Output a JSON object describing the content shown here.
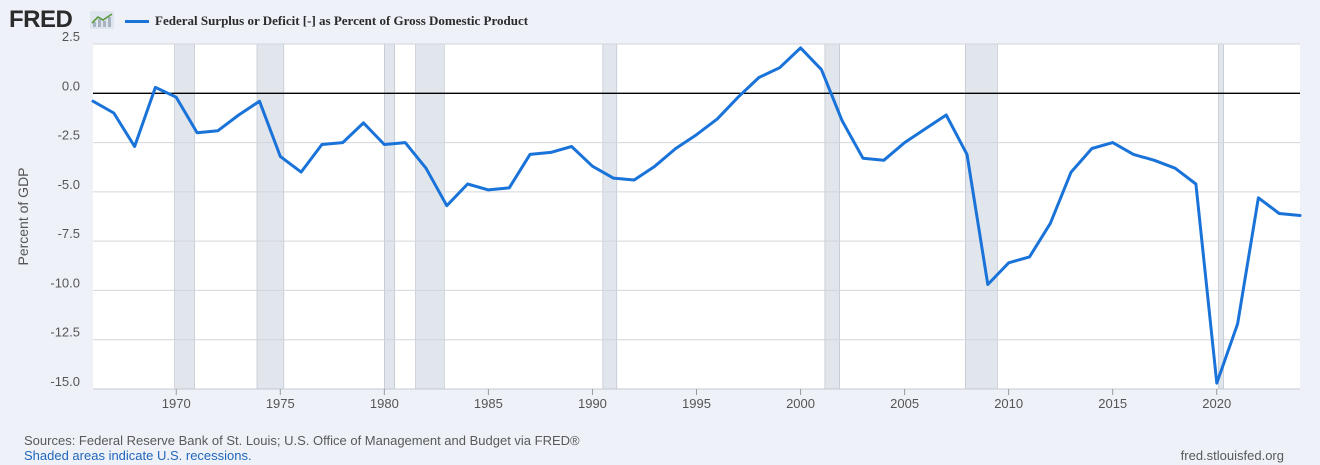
{
  "header": {
    "logo_text": "FRED",
    "logo_icon": "trend-chart-icon",
    "series_label": "Federal Surplus or Deficit [-] as Percent of Gross Domestic Product",
    "series_color": "#1a73d9"
  },
  "footer": {
    "sources": "Sources: Federal Reserve Bank of St. Louis; U.S. Office of Management and Budget via FRED®",
    "recession_note": "Shaded areas indicate U.S. recessions.",
    "site": "fred.stlouisfed.org"
  },
  "colors": {
    "background": "#eef2f8",
    "plot_background": "#ffffff",
    "recession_shading": "#e1e5ec",
    "series": "#1a73d9",
    "zero_line": "#000000"
  },
  "chart_data": {
    "type": "line",
    "title": "",
    "xlabel": "",
    "ylabel": "Percent of GDP",
    "xlim": [
      1966,
      2024
    ],
    "ylim": [
      -15,
      2.5
    ],
    "y_ticks": [
      2.5,
      0.0,
      -2.5,
      -5.0,
      -7.5,
      -10.0,
      -12.5,
      -15.0
    ],
    "y_tick_labels": [
      "2.5",
      "0.0",
      "-2.5",
      "-5.0",
      "-7.5",
      "-10.0",
      "-12.5",
      "-15.0"
    ],
    "x_ticks": [
      1970,
      1975,
      1980,
      1985,
      1990,
      1995,
      2000,
      2005,
      2010,
      2015,
      2020
    ],
    "x_tick_labels": [
      "1970",
      "1975",
      "1980",
      "1985",
      "1990",
      "1995",
      "2000",
      "2005",
      "2010",
      "2015",
      "2020"
    ],
    "grid": "horizontal",
    "reference_line": 0,
    "recessions": [
      [
        1969.92,
        1970.88
      ],
      [
        1973.88,
        1975.17
      ],
      [
        1980.0,
        1980.5
      ],
      [
        1981.5,
        1982.88
      ],
      [
        1990.5,
        1991.17
      ],
      [
        2001.17,
        2001.88
      ],
      [
        2007.92,
        2009.46
      ],
      [
        2020.08,
        2020.33
      ]
    ],
    "series": [
      {
        "name": "Federal Surplus or Deficit [-] as Percent of Gross Domestic Product",
        "x": [
          1966,
          1967,
          1968,
          1969,
          1970,
          1971,
          1972,
          1973,
          1974,
          1975,
          1976,
          1977,
          1978,
          1979,
          1980,
          1981,
          1982,
          1983,
          1984,
          1985,
          1986,
          1987,
          1988,
          1989,
          1990,
          1991,
          1992,
          1993,
          1994,
          1995,
          1996,
          1997,
          1998,
          1999,
          2000,
          2001,
          2002,
          2003,
          2004,
          2005,
          2006,
          2007,
          2008,
          2009,
          2010,
          2011,
          2012,
          2013,
          2014,
          2015,
          2016,
          2017,
          2018,
          2019,
          2020,
          2021,
          2022,
          2023,
          2024
        ],
        "values": [
          -0.4,
          -1.0,
          -2.7,
          0.3,
          -0.2,
          -2.0,
          -1.9,
          -1.1,
          -0.4,
          -3.2,
          -4.0,
          -2.6,
          -2.5,
          -1.5,
          -2.6,
          -2.5,
          -3.8,
          -5.7,
          -4.6,
          -4.9,
          -4.8,
          -3.1,
          -3.0,
          -2.7,
          -3.7,
          -4.3,
          -4.4,
          -3.7,
          -2.8,
          -2.1,
          -1.3,
          -0.2,
          0.8,
          1.3,
          2.3,
          1.2,
          -1.4,
          -3.3,
          -3.4,
          -2.5,
          -1.8,
          -1.1,
          -3.1,
          -9.7,
          -8.6,
          -8.3,
          -6.6,
          -4.0,
          -2.8,
          -2.5,
          -3.1,
          -3.4,
          -3.8,
          -4.6,
          -14.7,
          -11.7,
          -5.3,
          -6.1,
          -6.2
        ]
      }
    ]
  }
}
